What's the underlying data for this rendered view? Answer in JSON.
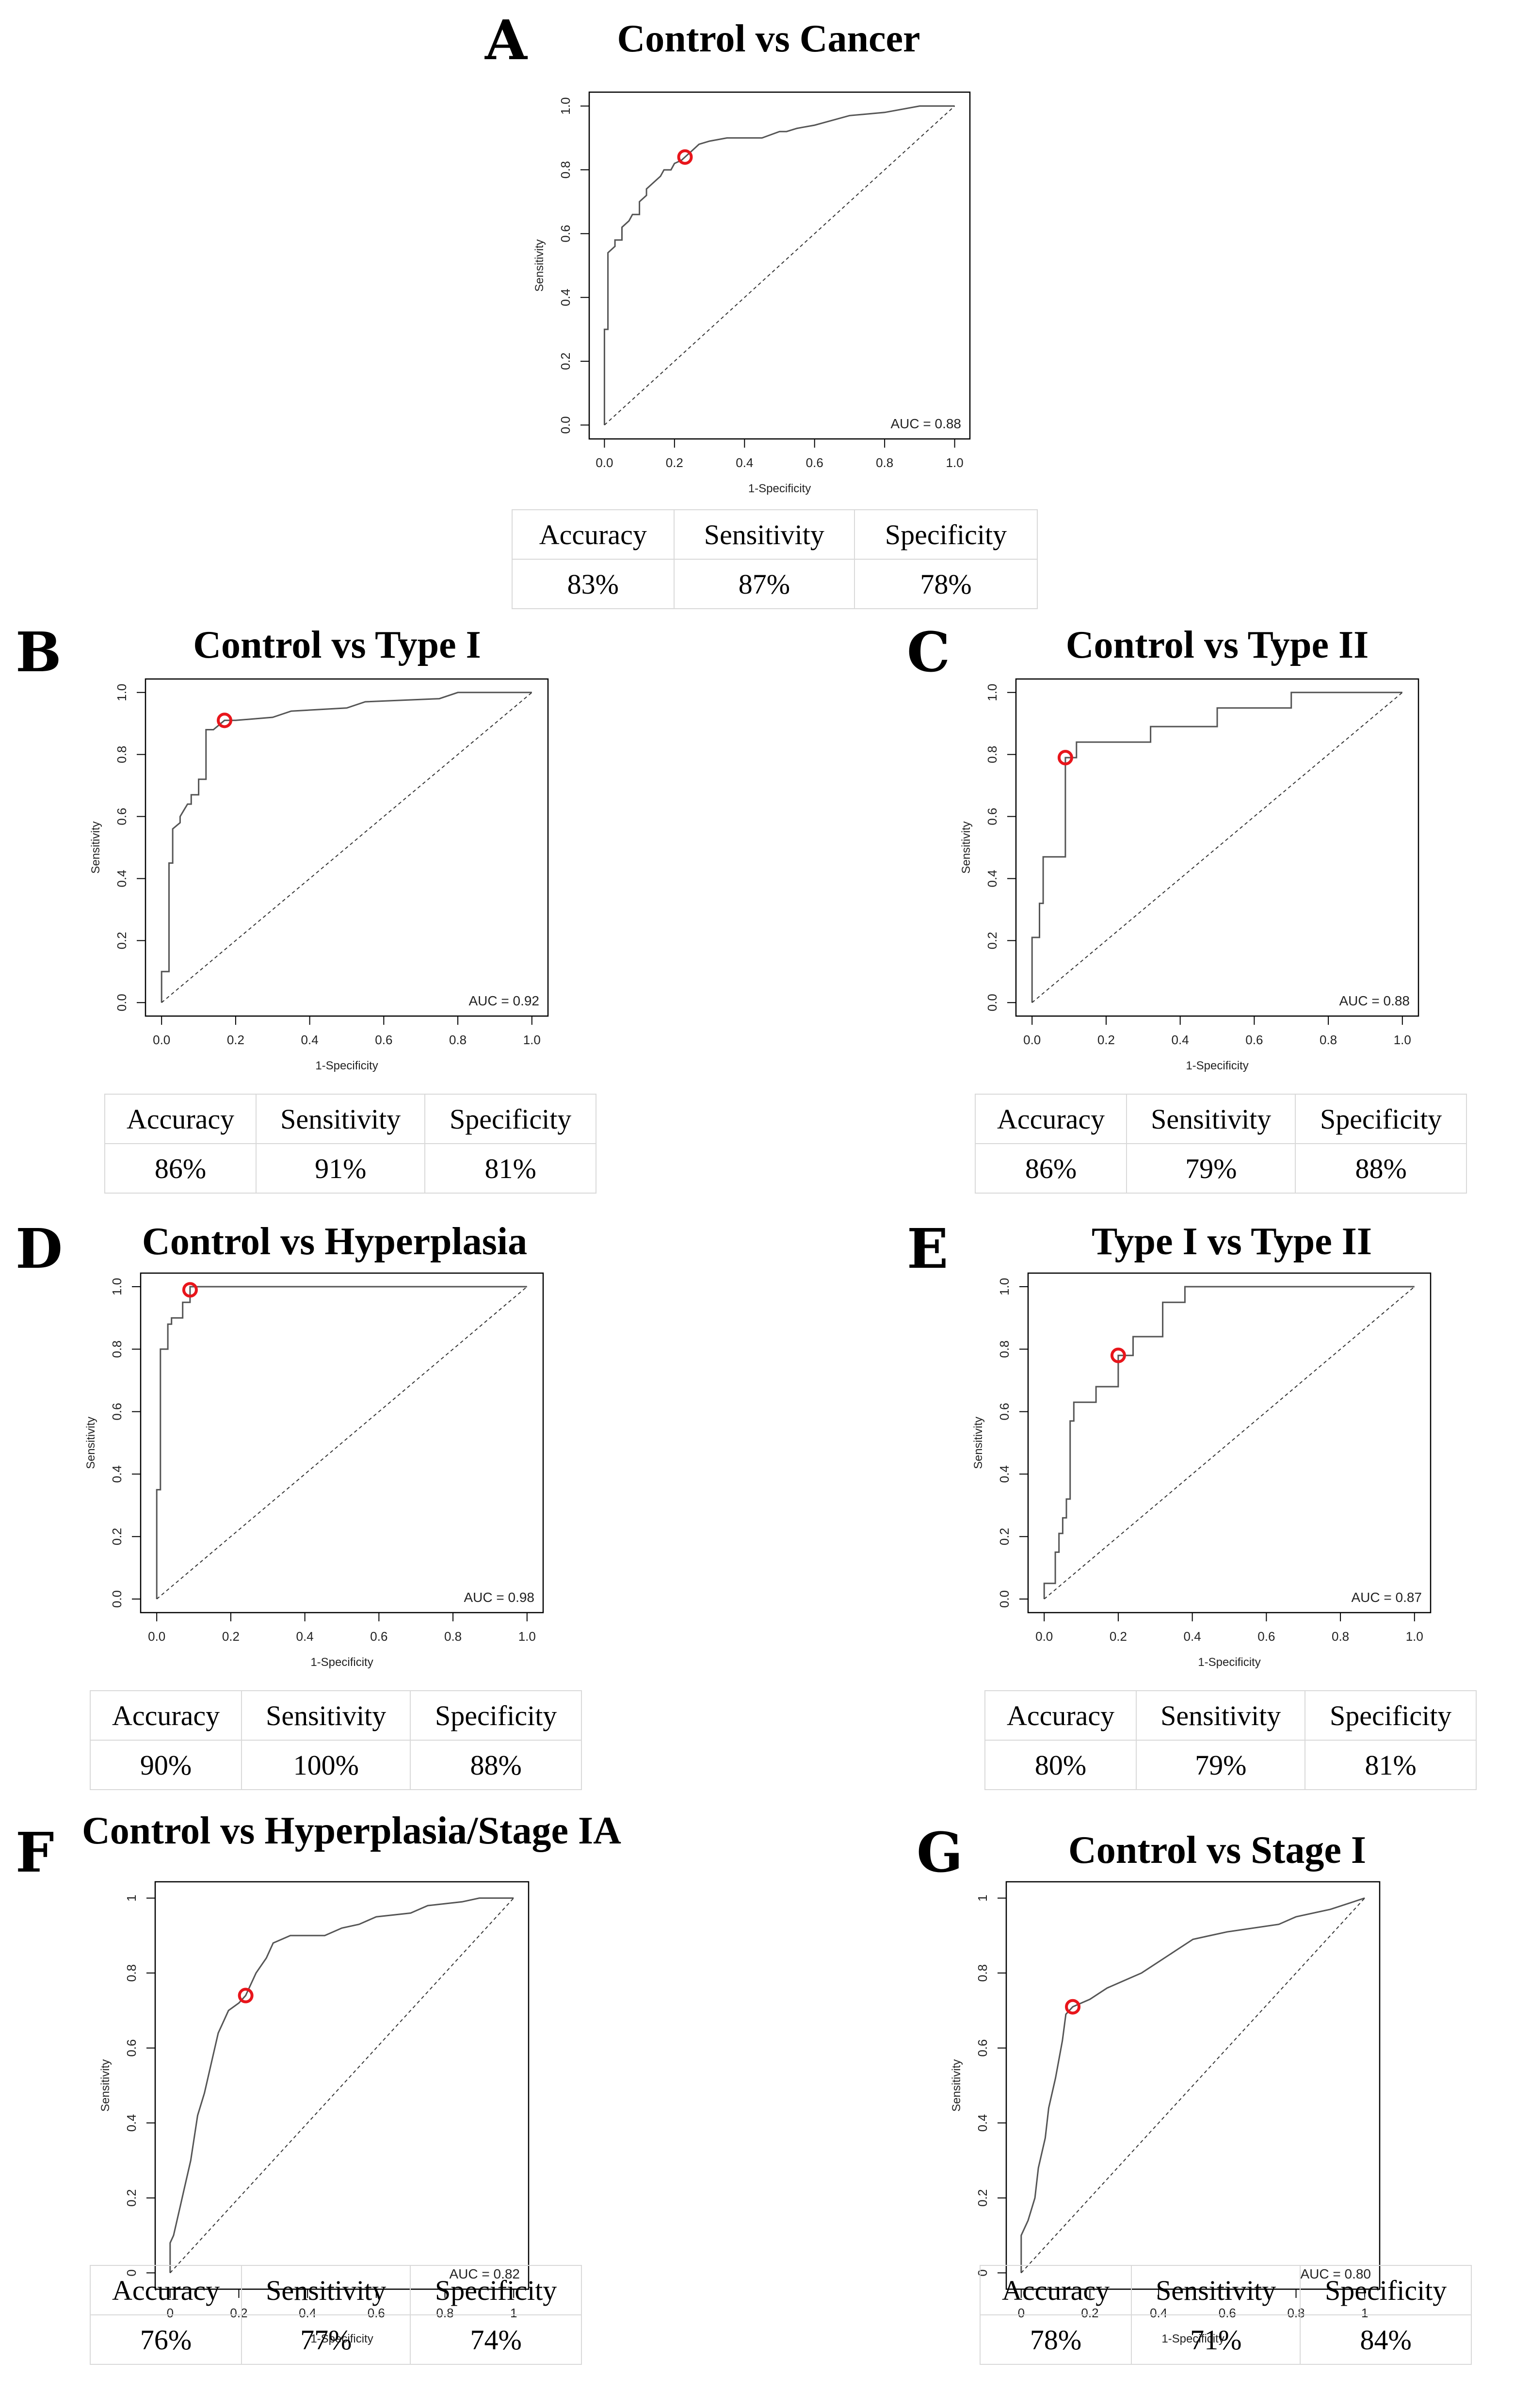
{
  "chart_data": [
    {
      "type": "line",
      "panel": "A",
      "title": "Control vs Cancer",
      "xlabel": "1-Specificity",
      "ylabel": "Sensitivity",
      "xlim": [
        0,
        1
      ],
      "ylim": [
        0,
        1
      ],
      "xticks": [
        "0.0",
        "0.2",
        "0.4",
        "0.6",
        "0.8",
        "1.0"
      ],
      "yticks": [
        "0.0",
        "0.2",
        "0.4",
        "0.6",
        "0.8",
        "1.0"
      ],
      "auc_label": "AUC = 0.88",
      "cutoff_point": {
        "x": 0.23,
        "y": 0.84
      },
      "series": [
        {
          "name": "ROC",
          "x": [
            0,
            0,
            0.01,
            0.01,
            0.03,
            0.03,
            0.05,
            0.05,
            0.07,
            0.08,
            0.1,
            0.1,
            0.12,
            0.12,
            0.14,
            0.16,
            0.17,
            0.19,
            0.2,
            0.22,
            0.23,
            0.25,
            0.27,
            0.3,
            0.35,
            0.45,
            0.5,
            0.52,
            0.55,
            0.6,
            0.7,
            0.8,
            0.9,
            1.0
          ],
          "y": [
            0,
            0.3,
            0.3,
            0.54,
            0.56,
            0.58,
            0.58,
            0.62,
            0.64,
            0.66,
            0.66,
            0.7,
            0.72,
            0.74,
            0.76,
            0.78,
            0.8,
            0.8,
            0.82,
            0.83,
            0.84,
            0.86,
            0.88,
            0.89,
            0.9,
            0.9,
            0.92,
            0.92,
            0.93,
            0.94,
            0.97,
            0.98,
            1.0,
            1.0
          ]
        },
        {
          "name": "Reference",
          "x": [
            0,
            1
          ],
          "y": [
            0,
            1
          ],
          "style": "dashed"
        }
      ],
      "metrics": {
        "headers": [
          "Accuracy",
          "Sensitivity",
          "Specificity"
        ],
        "values": [
          "83%",
          "87%",
          "78%"
        ]
      }
    },
    {
      "type": "line",
      "panel": "B",
      "title": "Control vs Type I",
      "xlabel": "1-Specificity",
      "ylabel": "Sensitivity",
      "xlim": [
        0,
        1
      ],
      "ylim": [
        0,
        1
      ],
      "xticks": [
        "0.0",
        "0.2",
        "0.4",
        "0.6",
        "0.8",
        "1.0"
      ],
      "yticks": [
        "0.0",
        "0.2",
        "0.4",
        "0.6",
        "0.8",
        "1.0"
      ],
      "auc_label": "AUC = 0.92",
      "cutoff_point": {
        "x": 0.17,
        "y": 0.91
      },
      "series": [
        {
          "name": "ROC",
          "x": [
            0,
            0,
            0.02,
            0.02,
            0.03,
            0.03,
            0.05,
            0.05,
            0.06,
            0.07,
            0.08,
            0.08,
            0.1,
            0.1,
            0.12,
            0.12,
            0.14,
            0.17,
            0.2,
            0.3,
            0.35,
            0.5,
            0.55,
            0.75,
            0.8,
            1.0
          ],
          "y": [
            0,
            0.1,
            0.1,
            0.45,
            0.45,
            0.56,
            0.58,
            0.6,
            0.62,
            0.64,
            0.64,
            0.67,
            0.67,
            0.72,
            0.72,
            0.88,
            0.88,
            0.91,
            0.91,
            0.92,
            0.94,
            0.95,
            0.97,
            0.98,
            1.0,
            1.0
          ]
        },
        {
          "name": "Reference",
          "x": [
            0,
            1
          ],
          "y": [
            0,
            1
          ],
          "style": "dashed"
        }
      ],
      "metrics": {
        "headers": [
          "Accuracy",
          "Sensitivity",
          "Specificity"
        ],
        "values": [
          "86%",
          "91%",
          "81%"
        ]
      }
    },
    {
      "type": "line",
      "panel": "C",
      "title": "Control vs Type II",
      "xlabel": "1-Specificity",
      "ylabel": "Sensitivity",
      "xlim": [
        0,
        1
      ],
      "ylim": [
        0,
        1
      ],
      "xticks": [
        "0.0",
        "0.2",
        "0.4",
        "0.6",
        "0.8",
        "1.0"
      ],
      "yticks": [
        "0.0",
        "0.2",
        "0.4",
        "0.6",
        "0.8",
        "1.0"
      ],
      "auc_label": "AUC = 0.88",
      "cutoff_point": {
        "x": 0.09,
        "y": 0.79
      },
      "series": [
        {
          "name": "ROC",
          "x": [
            0,
            0,
            0.02,
            0.02,
            0.03,
            0.03,
            0.05,
            0.05,
            0.09,
            0.09,
            0.12,
            0.12,
            0.32,
            0.32,
            0.5,
            0.5,
            0.7,
            0.7,
            1.0
          ],
          "y": [
            0,
            0.21,
            0.21,
            0.32,
            0.32,
            0.47,
            0.47,
            0.47,
            0.47,
            0.79,
            0.79,
            0.84,
            0.84,
            0.89,
            0.89,
            0.95,
            0.95,
            1.0,
            1.0
          ]
        },
        {
          "name": "Reference",
          "x": [
            0,
            1
          ],
          "y": [
            0,
            1
          ],
          "style": "dashed"
        }
      ],
      "metrics": {
        "headers": [
          "Accuracy",
          "Sensitivity",
          "Specificity"
        ],
        "values": [
          "86%",
          "79%",
          "88%"
        ]
      }
    },
    {
      "type": "line",
      "panel": "D",
      "title": "Control vs Hyperplasia",
      "xlabel": "1-Specificity",
      "ylabel": "Sensitivity",
      "xlim": [
        0,
        1
      ],
      "ylim": [
        0,
        1
      ],
      "xticks": [
        "0.0",
        "0.2",
        "0.4",
        "0.6",
        "0.8",
        "1.0"
      ],
      "yticks": [
        "0.0",
        "0.2",
        "0.4",
        "0.6",
        "0.8",
        "1.0"
      ],
      "auc_label": "AUC = 0.98",
      "cutoff_point": {
        "x": 0.09,
        "y": 0.99
      },
      "series": [
        {
          "name": "ROC",
          "x": [
            0,
            0,
            0.01,
            0.01,
            0.03,
            0.03,
            0.04,
            0.04,
            0.07,
            0.07,
            0.09,
            0.09,
            1.0
          ],
          "y": [
            0,
            0.35,
            0.35,
            0.8,
            0.8,
            0.88,
            0.88,
            0.9,
            0.9,
            0.95,
            0.95,
            1.0,
            1.0
          ]
        },
        {
          "name": "Reference",
          "x": [
            0,
            1
          ],
          "y": [
            0,
            1
          ],
          "style": "dashed"
        }
      ],
      "metrics": {
        "headers": [
          "Accuracy",
          "Sensitivity",
          "Specificity"
        ],
        "values": [
          "90%",
          "100%",
          "88%"
        ]
      }
    },
    {
      "type": "line",
      "panel": "E",
      "title": "Type I vs Type II",
      "xlabel": "1-Specificity",
      "ylabel": "Sensitivity",
      "xlim": [
        0,
        1
      ],
      "ylim": [
        0,
        1
      ],
      "xticks": [
        "0.0",
        "0.2",
        "0.4",
        "0.6",
        "0.8",
        "1.0"
      ],
      "yticks": [
        "0.0",
        "0.2",
        "0.4",
        "0.6",
        "0.8",
        "1.0"
      ],
      "auc_label": "AUC = 0.87",
      "cutoff_point": {
        "x": 0.2,
        "y": 0.78
      },
      "series": [
        {
          "name": "ROC",
          "x": [
            0,
            0,
            0.03,
            0.03,
            0.04,
            0.04,
            0.05,
            0.05,
            0.06,
            0.06,
            0.07,
            0.07,
            0.08,
            0.08,
            0.1,
            0.1,
            0.14,
            0.14,
            0.2,
            0.2,
            0.24,
            0.24,
            0.32,
            0.32,
            0.38,
            0.38,
            1.0
          ],
          "y": [
            0,
            0.05,
            0.05,
            0.15,
            0.15,
            0.21,
            0.21,
            0.26,
            0.26,
            0.32,
            0.32,
            0.57,
            0.57,
            0.63,
            0.63,
            0.63,
            0.63,
            0.68,
            0.68,
            0.78,
            0.78,
            0.84,
            0.84,
            0.95,
            0.95,
            1.0,
            1.0
          ]
        },
        {
          "name": "Reference",
          "x": [
            0,
            1
          ],
          "y": [
            0,
            1
          ],
          "style": "dashed"
        }
      ],
      "metrics": {
        "headers": [
          "Accuracy",
          "Sensitivity",
          "Specificity"
        ],
        "values": [
          "80%",
          "79%",
          "81%"
        ]
      }
    },
    {
      "type": "line",
      "panel": "F",
      "title": "Control vs Hyperplasia/Stage IA",
      "xlabel": "1-Specificity",
      "ylabel": "Sensitivity",
      "xlim": [
        0,
        1
      ],
      "ylim": [
        0,
        1
      ],
      "xticks": [
        "0",
        "0.2",
        "0.4",
        "0.6",
        "0.8",
        "1"
      ],
      "yticks": [
        "0",
        "0.2",
        "0.4",
        "0.6",
        "0.8",
        "1"
      ],
      "auc_label": "AUC = 0.82",
      "cutoff_point": {
        "x": 0.22,
        "y": 0.74
      },
      "series": [
        {
          "name": "ROC",
          "x": [
            0,
            0,
            0.01,
            0.02,
            0.03,
            0.04,
            0.05,
            0.06,
            0.07,
            0.08,
            0.1,
            0.12,
            0.14,
            0.15,
            0.17,
            0.2,
            0.22,
            0.25,
            0.28,
            0.3,
            0.35,
            0.45,
            0.5,
            0.55,
            0.6,
            0.7,
            0.75,
            0.85,
            0.9,
            1.0
          ],
          "y": [
            0,
            0.08,
            0.1,
            0.14,
            0.18,
            0.22,
            0.26,
            0.3,
            0.36,
            0.42,
            0.48,
            0.56,
            0.64,
            0.66,
            0.7,
            0.72,
            0.74,
            0.8,
            0.84,
            0.88,
            0.9,
            0.9,
            0.92,
            0.93,
            0.95,
            0.96,
            0.98,
            0.99,
            1.0,
            1.0
          ]
        },
        {
          "name": "Reference",
          "x": [
            0,
            1
          ],
          "y": [
            0,
            1
          ],
          "style": "dashed"
        }
      ],
      "metrics": {
        "headers": [
          "Accuracy",
          "Sensitivity",
          "Specificity"
        ],
        "values": [
          "76%",
          "77%",
          "74%"
        ]
      }
    },
    {
      "type": "line",
      "panel": "G",
      "title": "Control vs Stage I",
      "xlabel": "1-Specificity",
      "ylabel": "Sensitivity",
      "xlim": [
        0,
        1
      ],
      "ylim": [
        0,
        1
      ],
      "xticks": [
        "0",
        "0.2",
        "0.4",
        "0.6",
        "0.8",
        "1"
      ],
      "yticks": [
        "0",
        "0.2",
        "0.4",
        "0.6",
        "0.8",
        "1"
      ],
      "auc_label": "AUC = 0.80",
      "cutoff_point": {
        "x": 0.15,
        "y": 0.71
      },
      "series": [
        {
          "name": "ROC",
          "x": [
            0,
            0,
            0.02,
            0.04,
            0.05,
            0.07,
            0.08,
            0.1,
            0.12,
            0.13,
            0.15,
            0.2,
            0.25,
            0.3,
            0.35,
            0.4,
            0.45,
            0.5,
            0.55,
            0.6,
            0.75,
            0.8,
            0.9,
            1.0
          ],
          "y": [
            0,
            0.1,
            0.14,
            0.2,
            0.28,
            0.36,
            0.44,
            0.52,
            0.62,
            0.69,
            0.71,
            0.73,
            0.76,
            0.78,
            0.8,
            0.83,
            0.86,
            0.89,
            0.9,
            0.91,
            0.93,
            0.95,
            0.97,
            1.0
          ]
        },
        {
          "name": "Reference",
          "x": [
            0,
            1
          ],
          "y": [
            0,
            1
          ],
          "style": "dashed"
        }
      ],
      "metrics": {
        "headers": [
          "Accuracy",
          "Sensitivity",
          "Specificity"
        ],
        "values": [
          "78%",
          "71%",
          "84%"
        ]
      }
    }
  ]
}
